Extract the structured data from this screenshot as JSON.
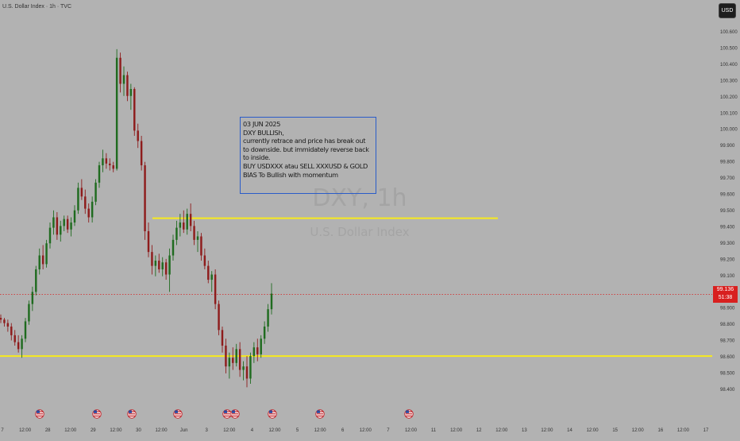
{
  "header": {
    "symbol_title": "U.S. Dollar Index · 1h · TVC",
    "currency_button": "USD"
  },
  "watermark": {
    "symbol": "DXY, 1h",
    "name": "U.S. Dollar Index"
  },
  "note": {
    "lines": [
      "03 JUN  2025",
      "DXY BULLISh,",
      "currently retrace and price has break out",
      "to downside. but immidately reverse back",
      "to inside.",
      "BUY USDXXX atau SELL XXXUSD & GOLD",
      "BIAS To Bullish with momentum"
    ]
  },
  "current_price": {
    "value": "99.136",
    "countdown": "51:38"
  },
  "colors": {
    "background": "#b2b2b2",
    "up_candle": "#1f6b1f",
    "down_candle": "#8e1c1c",
    "level_line": "#f7ea1e",
    "price_line": "#d8201f",
    "note_border": "#2a5cc9",
    "axis_text": "#333333"
  },
  "chart_data": {
    "type": "candlestick",
    "title": "U.S. Dollar Index · 1h · TVC",
    "y_axis": {
      "ticks": [
        "100.600",
        "100.500",
        "100.400",
        "100.300",
        "100.200",
        "100.100",
        "100.000",
        "99.900",
        "99.800",
        "99.700",
        "99.600",
        "99.500",
        "99.400",
        "99.300",
        "99.200",
        "99.100",
        "99.000",
        "98.900",
        "98.800",
        "98.700",
        "98.600",
        "98.500",
        "98.400"
      ],
      "range": [
        98.4,
        100.65
      ]
    },
    "x_axis": {
      "ticks": [
        "7",
        "12:00",
        "28",
        "12:00",
        "29",
        "12:00",
        "30",
        "12:00",
        "Jun",
        "3",
        "12:00",
        "4",
        "12:00",
        "5",
        "12:00",
        "6",
        "12:00",
        "7",
        "12:00",
        "11",
        "12:00",
        "12",
        "12:00",
        "13",
        "12:00",
        "14",
        "12:00",
        "15",
        "12:00",
        "16",
        "12:00",
        "17"
      ]
    },
    "horizontal_levels": [
      {
        "price": 99.575
      },
      {
        "price": 98.78
      }
    ],
    "last_price": 99.136,
    "events": [
      {
        "label": "US"
      },
      {
        "label": "US"
      },
      {
        "label": "US"
      },
      {
        "label": "US"
      },
      {
        "label": "US"
      },
      {
        "label": "US"
      },
      {
        "label": "US"
      },
      {
        "label": "US"
      },
      {
        "label": "US"
      }
    ],
    "candles": [
      [
        99.0,
        99.02,
        98.97,
        98.99
      ],
      [
        98.99,
        99.0,
        98.95,
        98.97
      ],
      [
        98.97,
        98.99,
        98.92,
        98.95
      ],
      [
        98.95,
        98.97,
        98.87,
        98.9
      ],
      [
        98.9,
        98.93,
        98.84,
        98.86
      ],
      [
        98.86,
        98.9,
        98.8,
        98.82
      ],
      [
        98.82,
        98.9,
        98.77,
        98.88
      ],
      [
        98.88,
        99.0,
        98.86,
        98.98
      ],
      [
        98.98,
        99.1,
        98.96,
        99.08
      ],
      [
        99.08,
        99.18,
        99.04,
        99.15
      ],
      [
        99.15,
        99.3,
        99.13,
        99.28
      ],
      [
        99.28,
        99.4,
        99.25,
        99.36
      ],
      [
        99.36,
        99.42,
        99.28,
        99.31
      ],
      [
        99.31,
        99.45,
        99.29,
        99.43
      ],
      [
        99.43,
        99.55,
        99.4,
        99.52
      ],
      [
        99.52,
        99.62,
        99.48,
        99.58
      ],
      [
        99.58,
        99.61,
        99.45,
        99.48
      ],
      [
        99.48,
        99.56,
        99.44,
        99.53
      ],
      [
        99.53,
        99.59,
        99.5,
        99.57
      ],
      [
        99.57,
        99.59,
        99.49,
        99.51
      ],
      [
        99.51,
        99.58,
        99.47,
        99.55
      ],
      [
        99.55,
        99.65,
        99.53,
        99.62
      ],
      [
        99.62,
        99.78,
        99.6,
        99.75
      ],
      [
        99.75,
        99.8,
        99.68,
        99.7
      ],
      [
        99.7,
        99.74,
        99.6,
        99.63
      ],
      [
        99.63,
        99.66,
        99.55,
        99.58
      ],
      [
        99.58,
        99.7,
        99.55,
        99.67
      ],
      [
        99.67,
        99.8,
        99.65,
        99.78
      ],
      [
        99.78,
        99.9,
        99.75,
        99.88
      ],
      [
        99.88,
        99.97,
        99.84,
        99.92
      ],
      [
        99.92,
        99.95,
        99.86,
        99.89
      ],
      [
        99.89,
        99.92,
        99.85,
        99.88
      ],
      [
        99.88,
        99.9,
        99.84,
        99.86
      ],
      [
        99.86,
        100.55,
        99.85,
        100.5
      ],
      [
        100.5,
        100.53,
        100.3,
        100.35
      ],
      [
        100.35,
        100.45,
        100.28,
        100.4
      ],
      [
        100.4,
        100.42,
        100.25,
        100.28
      ],
      [
        100.28,
        100.35,
        100.2,
        100.32
      ],
      [
        100.32,
        100.33,
        100.05,
        100.08
      ],
      [
        100.08,
        100.12,
        99.98,
        100.02
      ],
      [
        100.02,
        100.05,
        99.85,
        99.88
      ],
      [
        99.88,
        99.9,
        99.45,
        99.5
      ],
      [
        99.5,
        99.55,
        99.35,
        99.38
      ],
      [
        99.38,
        99.42,
        99.25,
        99.3
      ],
      [
        99.3,
        99.36,
        99.24,
        99.33
      ],
      [
        99.33,
        99.37,
        99.26,
        99.28
      ],
      [
        99.28,
        99.35,
        99.24,
        99.32
      ],
      [
        99.32,
        99.34,
        99.22,
        99.25
      ],
      [
        99.25,
        99.4,
        99.15,
        99.36
      ],
      [
        99.36,
        99.48,
        99.33,
        99.45
      ],
      [
        99.45,
        99.56,
        99.42,
        99.52
      ],
      [
        99.52,
        99.6,
        99.47,
        99.55
      ],
      [
        99.55,
        99.62,
        99.49,
        99.51
      ],
      [
        99.51,
        99.63,
        99.48,
        99.6
      ],
      [
        99.6,
        99.66,
        99.5,
        99.53
      ],
      [
        99.53,
        99.56,
        99.42,
        99.45
      ],
      [
        99.45,
        99.5,
        99.38,
        99.47
      ],
      [
        99.47,
        99.49,
        99.33,
        99.36
      ],
      [
        99.36,
        99.4,
        99.28,
        99.3
      ],
      [
        99.3,
        99.33,
        99.2,
        99.22
      ],
      [
        99.22,
        99.27,
        99.15,
        99.25
      ],
      [
        99.25,
        99.28,
        99.05,
        99.08
      ],
      [
        99.08,
        99.1,
        98.9,
        98.93
      ],
      [
        98.93,
        98.95,
        98.8,
        98.84
      ],
      [
        98.84,
        98.88,
        98.68,
        98.72
      ],
      [
        98.72,
        98.8,
        98.65,
        98.77
      ],
      [
        98.77,
        98.83,
        98.7,
        98.74
      ],
      [
        98.74,
        98.85,
        98.72,
        98.82
      ],
      [
        98.82,
        98.86,
        98.66,
        98.7
      ],
      [
        98.7,
        98.75,
        98.64,
        98.72
      ],
      [
        98.72,
        98.78,
        98.6,
        98.65
      ],
      [
        98.65,
        98.8,
        98.62,
        98.78
      ],
      [
        98.78,
        98.86,
        98.74,
        98.83
      ],
      [
        98.83,
        98.88,
        98.75,
        98.79
      ],
      [
        98.79,
        98.9,
        98.77,
        98.88
      ],
      [
        98.88,
        98.98,
        98.85,
        98.95
      ],
      [
        98.95,
        99.08,
        98.92,
        99.05
      ],
      [
        99.05,
        99.2,
        99.02,
        99.14
      ]
    ]
  }
}
